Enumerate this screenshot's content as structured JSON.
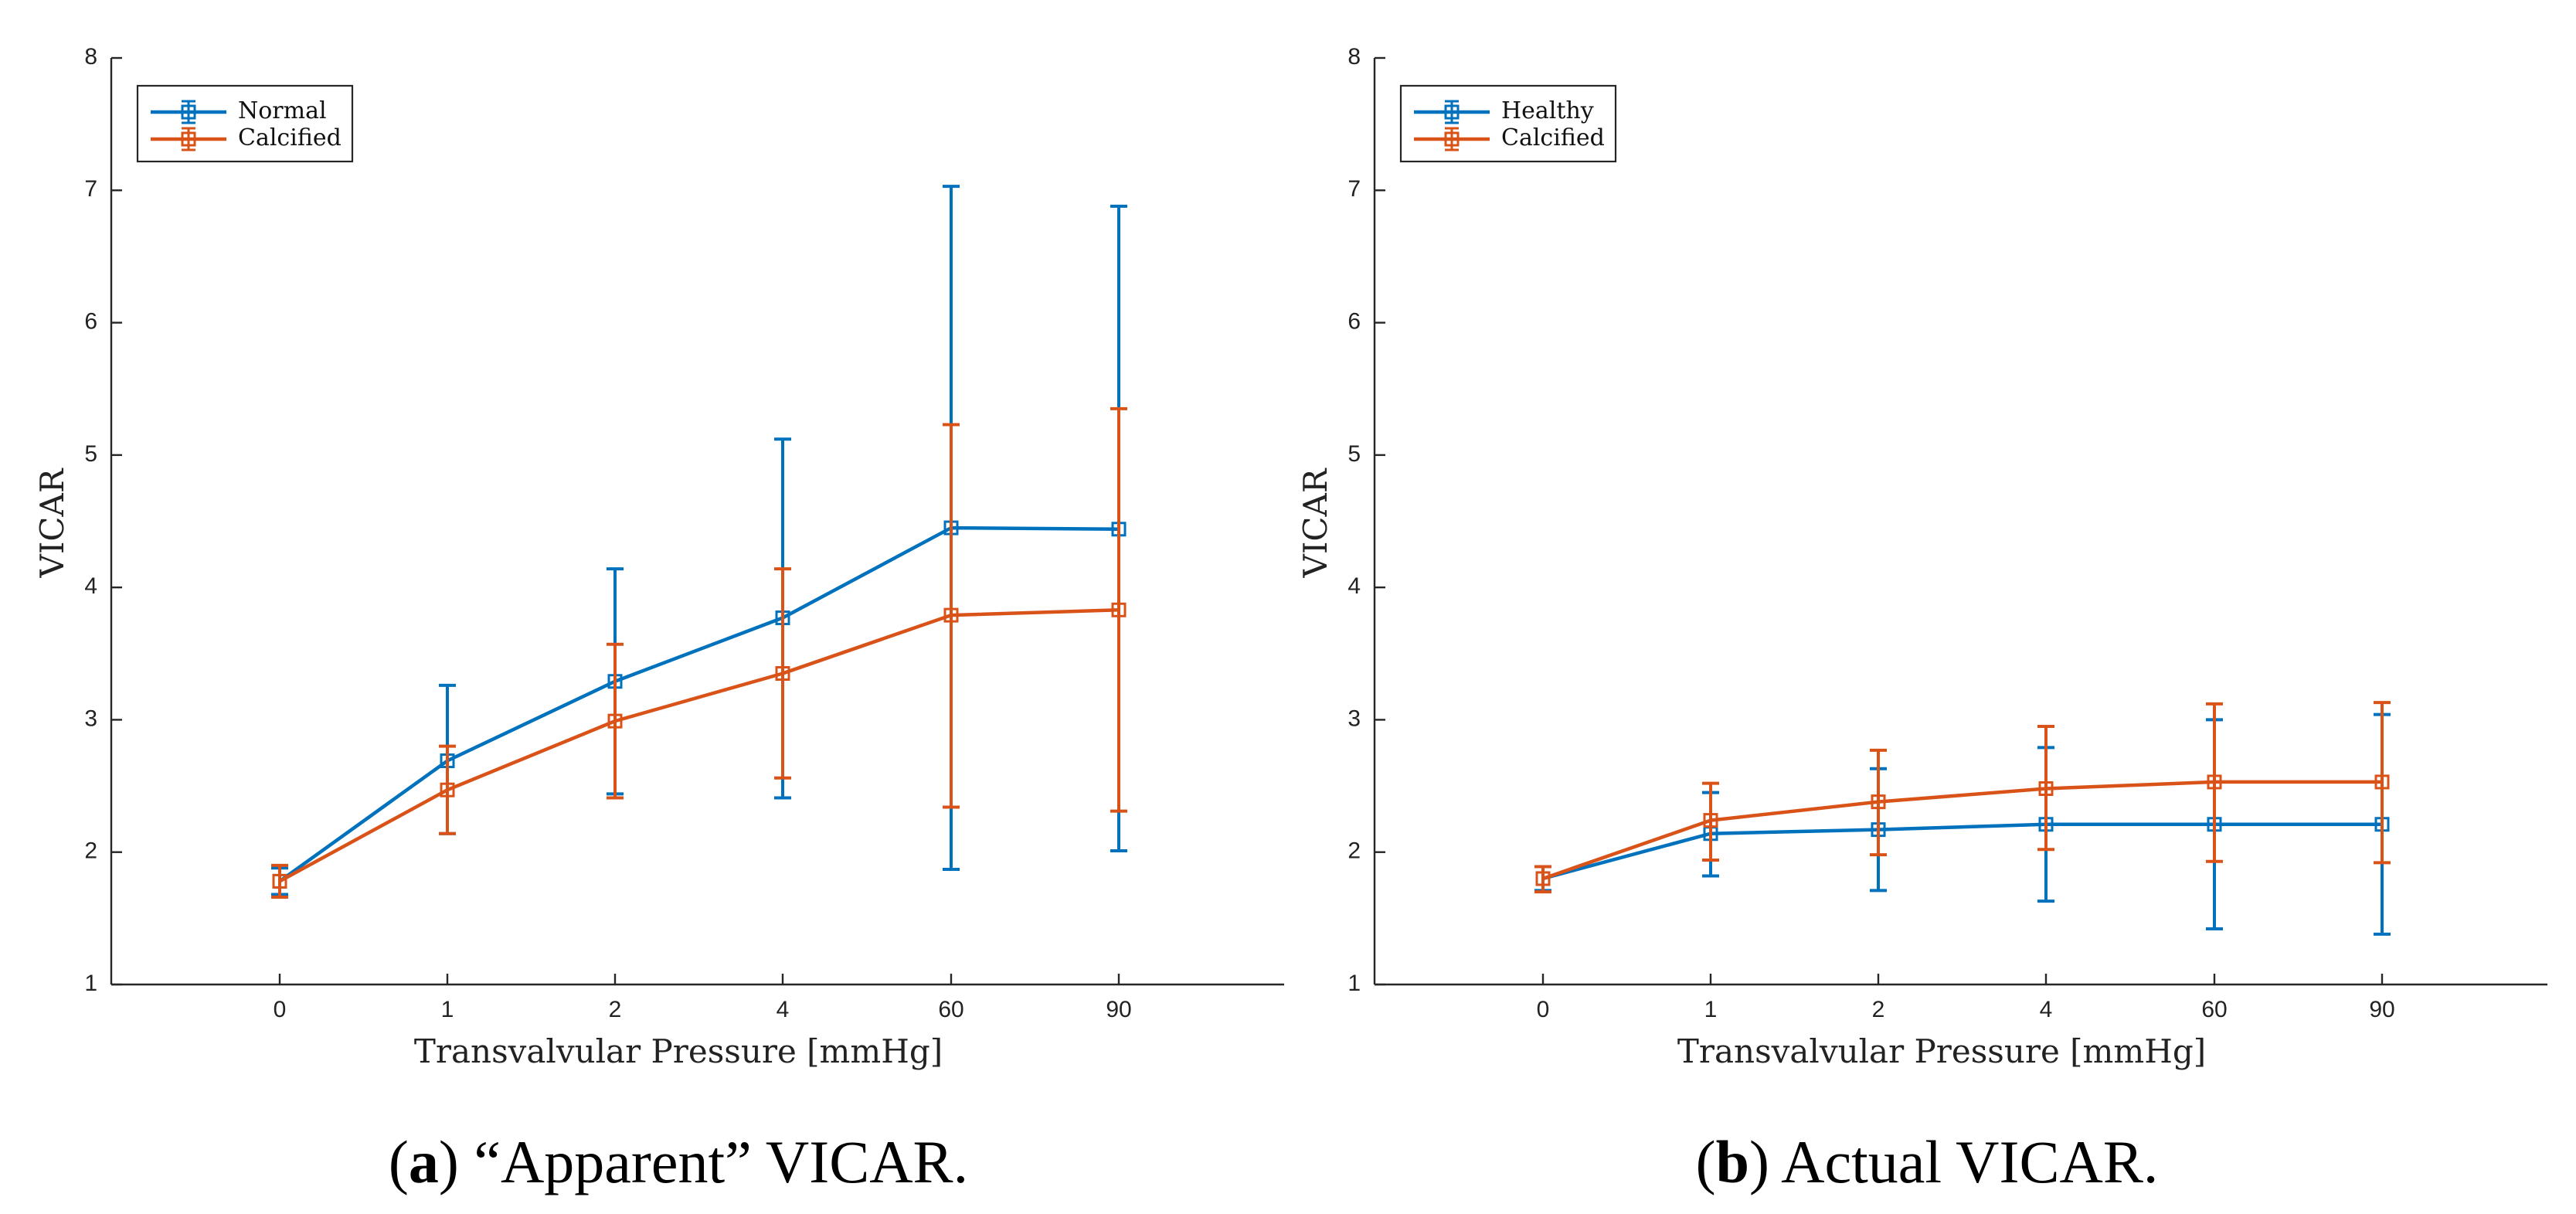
{
  "colors": {
    "blue": "#0072BD",
    "orange": "#D95319",
    "axis": "#262626"
  },
  "chart_data": [
    {
      "type": "line",
      "panel": "a",
      "caption_letter": "a",
      "caption_text": ") “Apparent” VICAR.",
      "xlabel": "Transvalvular Pressure [mmHg]",
      "ylabel": "VICAR",
      "categories": [
        "0",
        "1",
        "2",
        "4",
        "60",
        "90"
      ],
      "ylim": [
        1,
        8
      ],
      "yticks": [
        "1",
        "2",
        "3",
        "4",
        "5",
        "6",
        "7",
        "8"
      ],
      "grid": false,
      "legend_position": "top-left",
      "series": [
        {
          "name": "Normal",
          "color": "#0072BD",
          "values": [
            1.78,
            2.69,
            3.29,
            3.77,
            4.45,
            4.44
          ],
          "err_low": [
            1.68,
            2.14,
            2.44,
            2.41,
            1.87,
            2.01
          ],
          "err_high": [
            1.88,
            3.26,
            4.14,
            5.12,
            7.03,
            6.88
          ]
        },
        {
          "name": "Calcified",
          "color": "#D95319",
          "values": [
            1.78,
            2.47,
            2.99,
            3.35,
            3.79,
            3.83
          ],
          "err_low": [
            1.66,
            2.14,
            2.41,
            2.56,
            2.34,
            2.31
          ],
          "err_high": [
            1.9,
            2.8,
            3.57,
            4.14,
            5.23,
            5.35
          ]
        }
      ]
    },
    {
      "type": "line",
      "panel": "b",
      "caption_letter": "b",
      "caption_text": ") Actual VICAR.",
      "xlabel": "Transvalvular Pressure [mmHg]",
      "ylabel": "VICAR",
      "categories": [
        "0",
        "1",
        "2",
        "4",
        "60",
        "90"
      ],
      "ylim": [
        1,
        8
      ],
      "yticks": [
        "1",
        "2",
        "3",
        "4",
        "5",
        "6",
        "7",
        "8"
      ],
      "grid": false,
      "legend_position": "top-left",
      "series": [
        {
          "name": "Healthy",
          "color": "#0072BD",
          "values": [
            1.8,
            2.14,
            2.17,
            2.21,
            2.21,
            2.21
          ],
          "err_low": [
            1.71,
            1.82,
            1.71,
            1.63,
            1.42,
            1.38
          ],
          "err_high": [
            1.89,
            2.45,
            2.63,
            2.79,
            3.0,
            3.04
          ]
        },
        {
          "name": "Calcified",
          "color": "#D95319",
          "values": [
            1.8,
            2.24,
            2.38,
            2.48,
            2.53,
            2.53
          ],
          "err_low": [
            1.7,
            1.94,
            1.98,
            2.02,
            1.93,
            1.92
          ],
          "err_high": [
            1.89,
            2.52,
            2.77,
            2.95,
            3.12,
            3.13
          ]
        }
      ]
    }
  ]
}
